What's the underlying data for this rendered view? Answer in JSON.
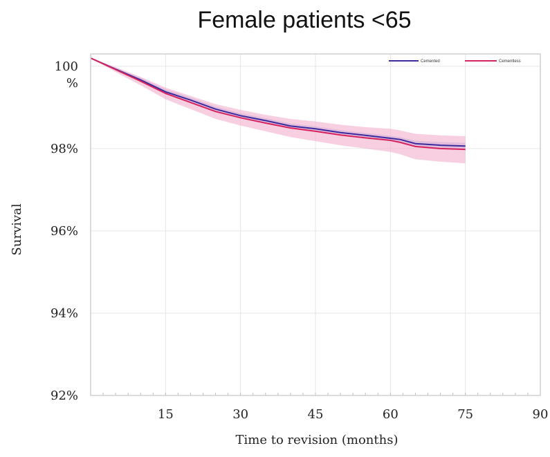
{
  "chart_data": {
    "type": "line",
    "title": "Female patients  <65",
    "xlabel": "Time to revision (months)",
    "ylabel": "Survival",
    "xlim": [
      0,
      90
    ],
    "ylim": [
      92,
      100.3
    ],
    "x_ticks": [
      15,
      30,
      45,
      60,
      75,
      90
    ],
    "y_ticks": [
      {
        "value": 100,
        "label_lines": [
          "100",
          "%"
        ]
      },
      {
        "value": 98,
        "label_lines": [
          "98%"
        ]
      },
      {
        "value": 96,
        "label_lines": [
          "96%"
        ]
      },
      {
        "value": 94,
        "label_lines": [
          "94%"
        ]
      },
      {
        "value": 92,
        "label_lines": [
          "92%"
        ]
      }
    ],
    "grid": true,
    "legend_position": "top-right",
    "series": [
      {
        "name": "Cemented",
        "color": "#3a2a9e",
        "band_color": "#a8b0e6",
        "x": [
          0,
          5,
          10,
          15,
          20,
          25,
          30,
          35,
          40,
          45,
          50,
          55,
          60,
          62,
          65,
          70,
          75
        ],
        "y": [
          100.2,
          99.93,
          99.67,
          99.38,
          99.18,
          98.96,
          98.8,
          98.68,
          98.55,
          98.48,
          98.39,
          98.32,
          98.25,
          98.22,
          98.12,
          98.08,
          98.06
        ],
        "lower": [
          100.2,
          99.9,
          99.62,
          99.32,
          99.12,
          98.9,
          98.74,
          98.62,
          98.49,
          98.42,
          98.33,
          98.26,
          98.19,
          98.16,
          98.05,
          98.0,
          97.98
        ],
        "upper": [
          100.2,
          99.96,
          99.72,
          99.44,
          99.24,
          99.02,
          98.86,
          98.74,
          98.61,
          98.54,
          98.45,
          98.38,
          98.31,
          98.28,
          98.19,
          98.16,
          98.14
        ]
      },
      {
        "name": "Cementless",
        "color": "#d6235e",
        "band_color": "#f2a8c8",
        "x": [
          0,
          5,
          10,
          15,
          20,
          25,
          30,
          35,
          40,
          45,
          50,
          55,
          60,
          62,
          65,
          70,
          75
        ],
        "y": [
          100.2,
          99.92,
          99.64,
          99.34,
          99.12,
          98.9,
          98.75,
          98.62,
          98.5,
          98.42,
          98.33,
          98.26,
          98.2,
          98.15,
          98.05,
          98.0,
          97.98
        ],
        "lower": [
          100.2,
          99.86,
          99.54,
          99.2,
          98.96,
          98.72,
          98.56,
          98.42,
          98.28,
          98.18,
          98.08,
          98.0,
          97.92,
          97.86,
          97.74,
          97.68,
          97.64
        ],
        "upper": [
          100.2,
          99.98,
          99.74,
          99.48,
          99.28,
          99.08,
          98.94,
          98.82,
          98.72,
          98.66,
          98.58,
          98.52,
          98.48,
          98.44,
          98.36,
          98.32,
          98.3
        ]
      }
    ]
  }
}
